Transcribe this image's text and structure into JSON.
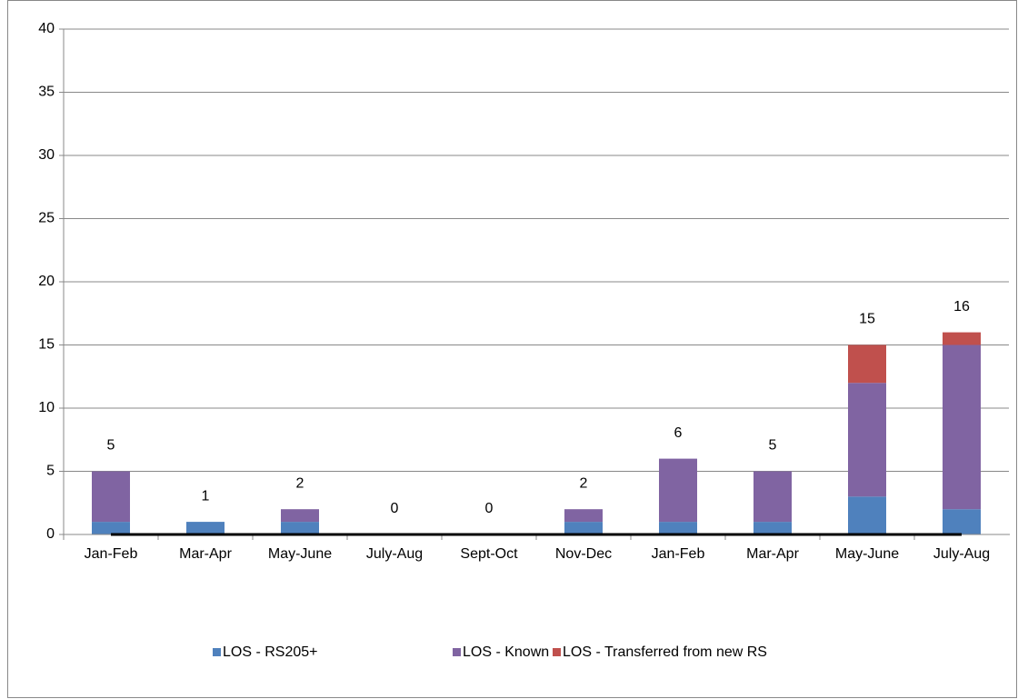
{
  "chart_data": {
    "type": "stacked_bar",
    "categories": [
      "Jan-Feb",
      "Mar-Apr",
      "May-June",
      "July-Aug",
      "Sept-Oct",
      "Nov-Dec",
      "Jan-Feb",
      "Mar-Apr",
      "May-June",
      "July-Aug"
    ],
    "series": [
      {
        "name": "LOS - RS205+",
        "color": "#4f81bd",
        "values": [
          1,
          1,
          1,
          0,
          0,
          1,
          1,
          1,
          3,
          2
        ]
      },
      {
        "name": "LOS - Known",
        "color": "#8064a2",
        "values": [
          4,
          0,
          1,
          0,
          0,
          1,
          5,
          4,
          9,
          13
        ]
      },
      {
        "name": "LOS - Transferred from new RS",
        "color": "#c0504d",
        "values": [
          0,
          0,
          0,
          0,
          0,
          0,
          0,
          0,
          3,
          1
        ]
      }
    ],
    "totals": [
      5,
      1,
      2,
      0,
      0,
      2,
      6,
      5,
      15,
      16
    ],
    "ylim": [
      0,
      40
    ],
    "yticks": [
      0,
      5,
      10,
      15,
      20,
      25,
      30,
      35,
      40
    ],
    "grid": true,
    "legend": "bottom"
  }
}
